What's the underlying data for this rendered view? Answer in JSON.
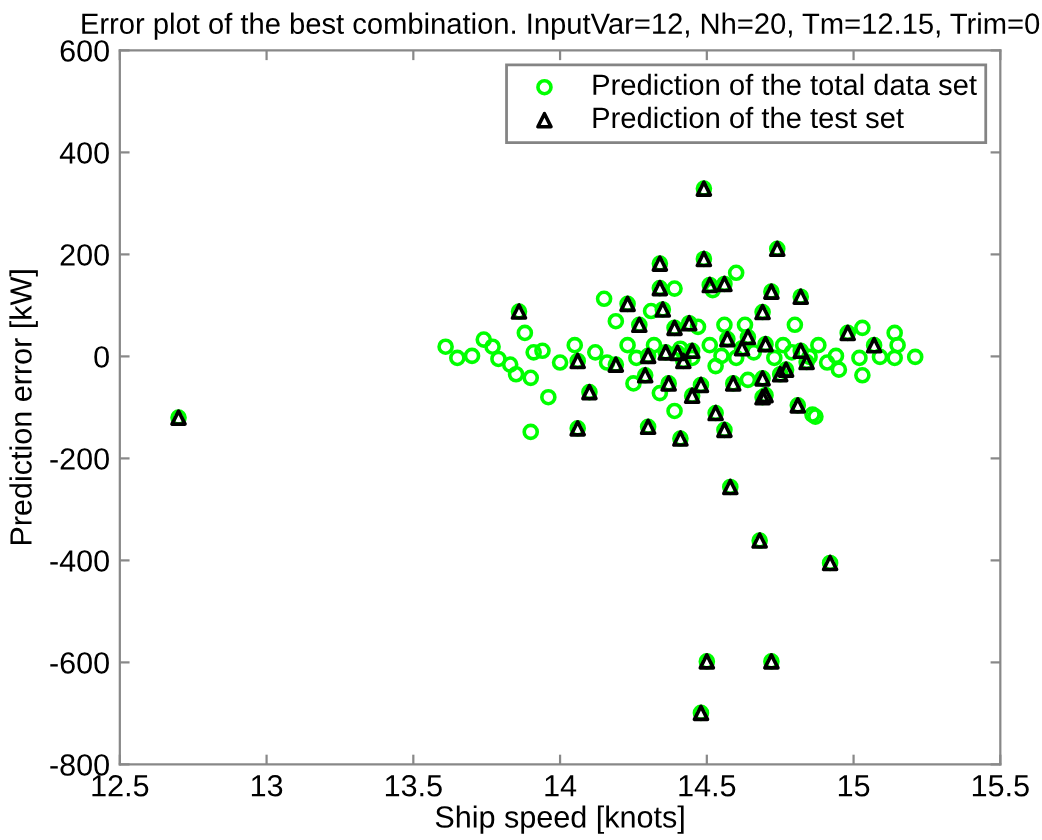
{
  "chart_data": {
    "type": "scatter",
    "title": "Error plot of the best combination. InputVar=12, Nh=20, Tm=12.15, Trim=0",
    "xlabel": "Ship speed [knots]",
    "ylabel": "Prediction error [kW]",
    "xlim": [
      12.5,
      15.5
    ],
    "xticks": [
      12.5,
      13,
      13.5,
      14,
      14.5,
      15,
      15.5
    ],
    "ylim": [
      -800,
      600
    ],
    "yticks": [
      -800,
      -600,
      -400,
      -200,
      0,
      200,
      400,
      600
    ],
    "legend": "top right",
    "series": [
      {
        "name": "Prediction of the total data set",
        "color": "#00ff00",
        "marker": "circle",
        "x": [
          14.6,
          14.39,
          14.15,
          14.19,
          14.52,
          14.56,
          14.47,
          14.31,
          14.63,
          14.8,
          15.03,
          15.14,
          13.88,
          13.61,
          13.65,
          13.7,
          13.74,
          13.77,
          13.79,
          13.83,
          13.85,
          13.91,
          13.94,
          14.0,
          13.96,
          13.9,
          14.05,
          14.12,
          14.16,
          14.23,
          14.25,
          14.26,
          14.32,
          14.41,
          14.45,
          14.51,
          14.53,
          14.55,
          14.6,
          14.64,
          14.66,
          14.73,
          14.76,
          14.79,
          14.85,
          14.88,
          14.91,
          14.94,
          14.95,
          15.02,
          15.03,
          15.09,
          15.15,
          15.21,
          15.14,
          14.39,
          14.34,
          14.86,
          13.9,
          14.87,
          12.7,
          14.49,
          14.74,
          14.34,
          14.49,
          14.34,
          14.51,
          14.56,
          14.72,
          14.82,
          14.23,
          13.86,
          14.35,
          14.69,
          14.27,
          14.39,
          14.44,
          14.98,
          14.57,
          14.64,
          15.07,
          14.7,
          14.82,
          14.06,
          14.19,
          14.3,
          14.36,
          14.4,
          14.42,
          14.45,
          14.62,
          14.84,
          14.29,
          14.37,
          14.48,
          14.59,
          14.69,
          14.75,
          14.77,
          14.1,
          14.45,
          14.69,
          14.7,
          14.81,
          14.53,
          14.06,
          14.3,
          14.41,
          14.56,
          14.58,
          14.68,
          14.92,
          14.5,
          14.72,
          14.48
        ],
        "values": [
          164,
          133,
          113,
          69,
          130,
          62,
          58,
          89,
          62,
          62,
          56,
          46,
          46,
          19,
          -3,
          1,
          33,
          19,
          -5,
          -16,
          -35,
          8,
          11,
          -12,
          -80,
          -42,
          22,
          8,
          -12,
          22,
          -53,
          -3,
          22,
          15,
          -3,
          22,
          -19,
          1,
          -3,
          -46,
          8,
          -3,
          22,
          8,
          -1,
          22,
          -12,
          1,
          -26,
          -3,
          -37,
          -1,
          22,
          -1,
          -3,
          -107,
          -72,
          -114,
          -148,
          -118,
          -120,
          329,
          211,
          182,
          191,
          134,
          140,
          142,
          127,
          117,
          103,
          88,
          92,
          87,
          62,
          56,
          65,
          46,
          34,
          38,
          22,
          24,
          11,
          -9,
          -16,
          1,
          8,
          7,
          -9,
          11,
          16,
          -11,
          -37,
          -53,
          -56,
          -53,
          -43,
          -35,
          -26,
          -70,
          -77,
          -80,
          -76,
          -96,
          -111,
          -141,
          -138,
          -161,
          -144,
          -256,
          -361,
          -405,
          -598,
          -598,
          -699
        ]
      },
      {
        "name": "Prediction of the test set",
        "color": "#000000",
        "marker": "triangle",
        "x": [
          12.7,
          14.49,
          14.74,
          14.34,
          14.49,
          14.34,
          14.51,
          14.56,
          14.72,
          14.82,
          14.23,
          13.86,
          14.35,
          14.69,
          14.27,
          14.39,
          14.44,
          14.98,
          14.57,
          14.64,
          15.07,
          14.7,
          14.82,
          14.06,
          14.19,
          14.3,
          14.36,
          14.4,
          14.42,
          14.45,
          14.62,
          14.84,
          14.29,
          14.37,
          14.48,
          14.59,
          14.69,
          14.75,
          14.77,
          14.1,
          14.45,
          14.69,
          14.7,
          14.81,
          14.53,
          14.06,
          14.3,
          14.41,
          14.56,
          14.58,
          14.68,
          14.92,
          14.5,
          14.72,
          14.48
        ],
        "values": [
          -120,
          329,
          211,
          182,
          191,
          134,
          140,
          142,
          127,
          117,
          103,
          88,
          92,
          87,
          62,
          56,
          65,
          46,
          34,
          38,
          22,
          24,
          11,
          -9,
          -16,
          1,
          8,
          7,
          -9,
          11,
          16,
          -11,
          -37,
          -53,
          -56,
          -53,
          -43,
          -35,
          -26,
          -70,
          -77,
          -80,
          -76,
          -96,
          -111,
          -141,
          -138,
          -161,
          -144,
          -256,
          -361,
          -405,
          -598,
          -598,
          -699
        ]
      }
    ]
  }
}
